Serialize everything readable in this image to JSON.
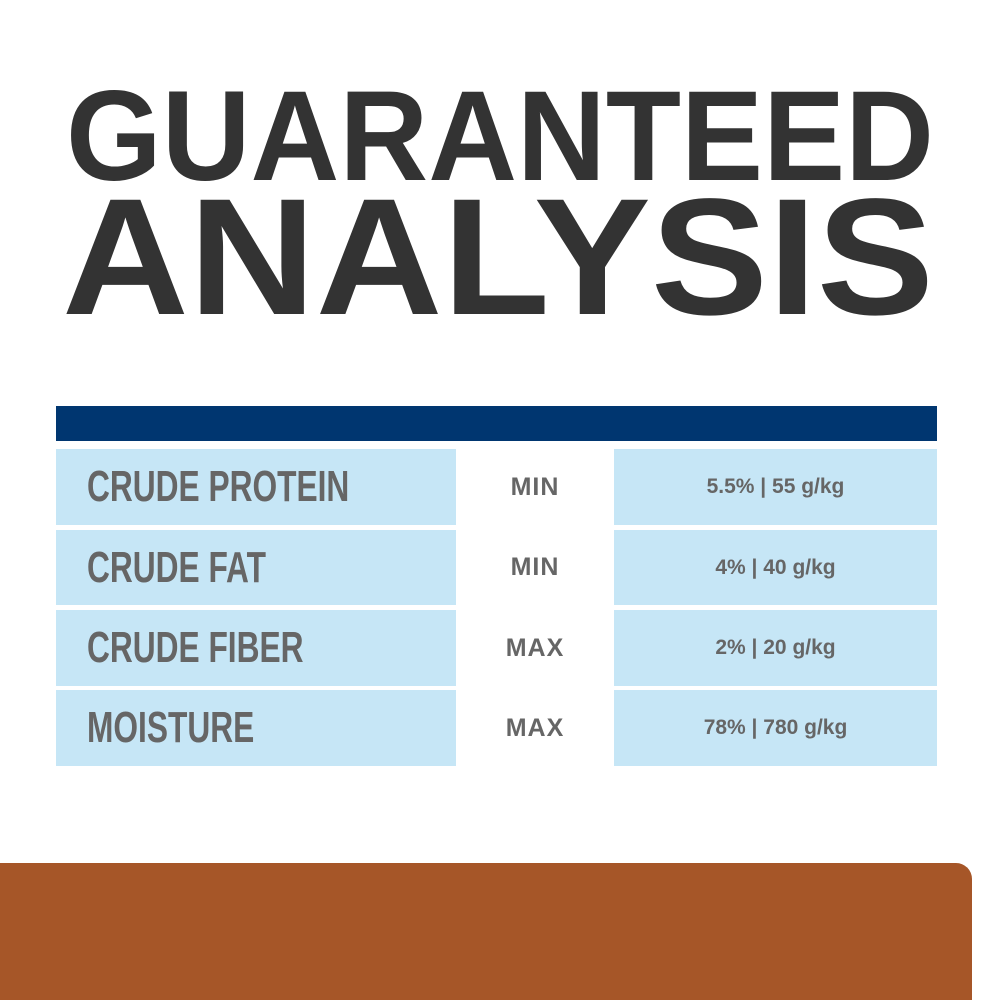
{
  "title": {
    "line1": "GUARANTEED",
    "line2": "ANALYSIS"
  },
  "colors": {
    "title": "#333333",
    "header_bar": "#003670",
    "cell": "#c6e6f6",
    "text": "#666666",
    "footer": "#a65628"
  },
  "rows": [
    {
      "nutrient": "CRUDE PROTEIN",
      "qualifier": "MIN",
      "value": "5.5% | 55 g/kg"
    },
    {
      "nutrient": "CRUDE FAT",
      "qualifier": "MIN",
      "value": "4% | 40 g/kg"
    },
    {
      "nutrient": "CRUDE FIBER",
      "qualifier": "MAX",
      "value": "2% | 20 g/kg"
    },
    {
      "nutrient": "MOISTURE",
      "qualifier": "MAX",
      "value": "78% | 780 g/kg"
    }
  ]
}
